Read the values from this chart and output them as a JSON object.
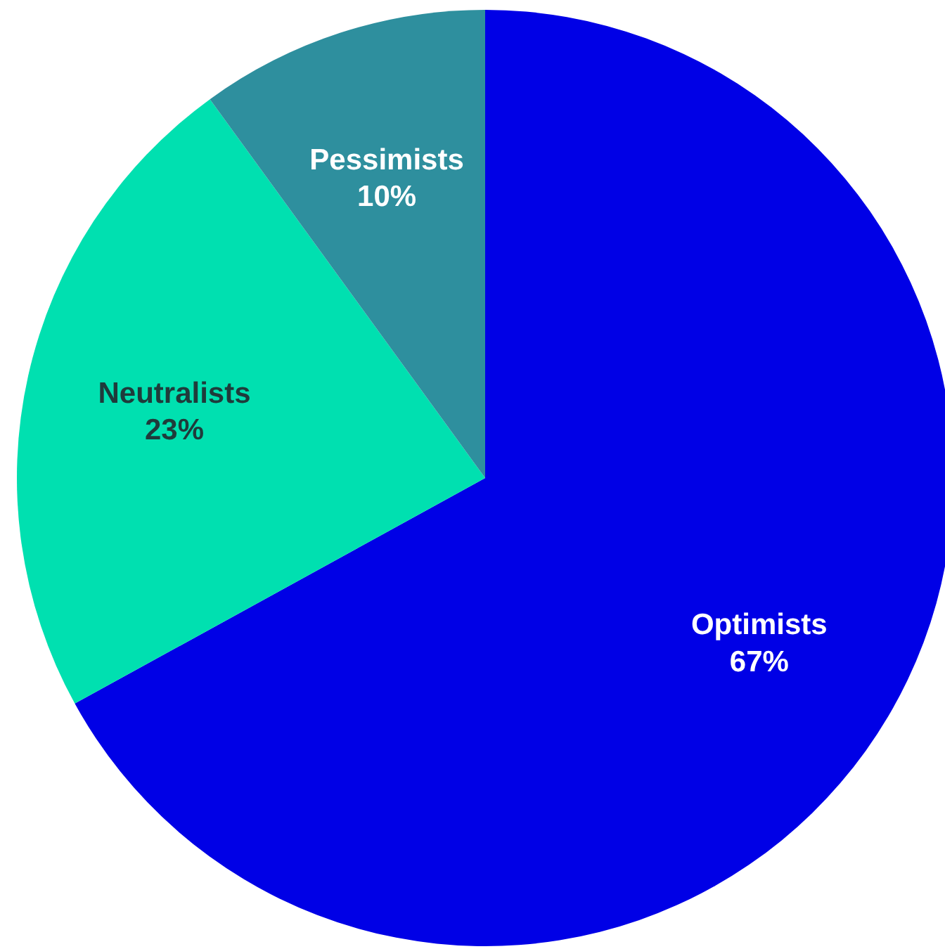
{
  "chart_data": {
    "type": "pie",
    "categories": [
      "Optimists",
      "Neutralists",
      "Pessimists"
    ],
    "values": [
      67,
      23,
      10
    ],
    "colors": [
      "#0000e6",
      "#00e0b0",
      "#2e8f9e"
    ],
    "value_labels": [
      "67%",
      "23%",
      "10%"
    ]
  }
}
